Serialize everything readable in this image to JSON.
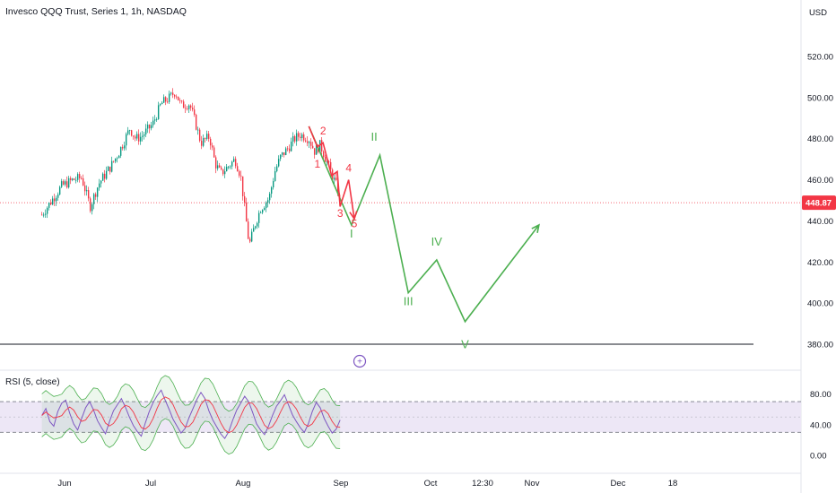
{
  "header": {
    "title": "Invesco QQQ Trust, Series 1, 1h, NASDAQ",
    "currency": "USD"
  },
  "price_tag": {
    "value": "448.87",
    "color": "#f23645"
  },
  "rsi": {
    "label": "RSI (5, close)"
  },
  "colors": {
    "candle_up": "#089981",
    "candle_down": "#f23645",
    "wave_red": "#f23645",
    "wave_green": "#4caf50",
    "rsi_line": "#7e57c2",
    "rsi_band": "#ede7f6",
    "bb": "#4caf50",
    "rsi_ma": "#f23645"
  },
  "chart_data": [
    {
      "type": "candlestick",
      "title": "Invesco QQQ Trust, Series 1, 1h, NASDAQ",
      "y_axis": {
        "ticks": [
          380,
          400,
          420,
          440,
          460,
          480,
          500,
          520
        ],
        "tick_labels": [
          "380.00",
          "400.00",
          "420.00",
          "440.00",
          "460.00",
          "480.00",
          "500.00",
          "520.00"
        ],
        "range": [
          372,
          535
        ]
      },
      "x_axis": {
        "labels": [
          "Jun",
          "Jul",
          "Aug",
          "Sep",
          "Oct",
          "12:30",
          "Nov",
          "Dec",
          "18"
        ]
      },
      "last_price": 448.87,
      "support_level": 380,
      "price_path": [
        {
          "d": "May 24",
          "p": 443
        },
        {
          "d": "May 28",
          "p": 451
        },
        {
          "d": "May 31",
          "p": 457
        },
        {
          "d": "Jun 4",
          "p": 460
        },
        {
          "d": "Jun 7",
          "p": 461
        },
        {
          "d": "Jun 10",
          "p": 447
        },
        {
          "d": "Jun 13",
          "p": 458
        },
        {
          "d": "Jun 17",
          "p": 466
        },
        {
          "d": "Jun 20",
          "p": 473
        },
        {
          "d": "Jun 24",
          "p": 485
        },
        {
          "d": "Jun 26",
          "p": 480
        },
        {
          "d": "Jun 28",
          "p": 481
        },
        {
          "d": "Jul 2",
          "p": 487
        },
        {
          "d": "Jul 5",
          "p": 497
        },
        {
          "d": "Jul 8",
          "p": 500
        },
        {
          "d": "Jul 10",
          "p": 503
        },
        {
          "d": "Jul 12",
          "p": 496
        },
        {
          "d": "Jul 15",
          "p": 497
        },
        {
          "d": "Jul 17",
          "p": 488
        },
        {
          "d": "Jul 19",
          "p": 478
        },
        {
          "d": "Jul 22",
          "p": 481
        },
        {
          "d": "Jul 24",
          "p": 468
        },
        {
          "d": "Jul 26",
          "p": 463
        },
        {
          "d": "Jul 29",
          "p": 467
        },
        {
          "d": "Jul 31",
          "p": 470
        },
        {
          "d": "Aug 2",
          "p": 462
        },
        {
          "d": "Aug 5",
          "p": 428
        },
        {
          "d": "Aug 7",
          "p": 438
        },
        {
          "d": "Aug 9",
          "p": 446
        },
        {
          "d": "Aug 12",
          "p": 451
        },
        {
          "d": "Aug 14",
          "p": 464
        },
        {
          "d": "Aug 16",
          "p": 471
        },
        {
          "d": "Aug 19",
          "p": 476
        },
        {
          "d": "Aug 21",
          "p": 480
        },
        {
          "d": "Aug 23",
          "p": 482
        },
        {
          "d": "Aug 26",
          "p": 480
        },
        {
          "d": "Aug 28",
          "p": 474
        },
        {
          "d": "Aug 30",
          "p": 477
        },
        {
          "d": "Sep 3",
          "p": 463
        },
        {
          "d": "Sep 5",
          "p": 456
        },
        {
          "d": "Sep 6",
          "p": 448
        }
      ],
      "wave_red": {
        "points": [
          {
            "d": "Aug 26",
            "p": 486
          },
          {
            "d": "Aug 29",
            "p": 476
          },
          {
            "d": "Aug 31",
            "p": 478
          },
          {
            "d": "Sep 3",
            "p": 462
          },
          {
            "d": "Sep 5",
            "p": 464
          },
          {
            "d": "Sep 6",
            "p": 447
          },
          {
            "d": "Sep 9",
            "p": 460
          },
          {
            "d": "Sep 11",
            "p": 441
          }
        ],
        "labels": [
          {
            "text": "2",
            "d": "Aug 31",
            "p": 482
          },
          {
            "text": "1",
            "d": "Aug 29",
            "p": 466
          },
          {
            "text": "3",
            "d": "Sep 6",
            "p": 442
          },
          {
            "text": "4",
            "d": "Sep 9",
            "p": 464
          },
          {
            "text": "5",
            "d": "Sep 11",
            "p": 437
          }
        ]
      },
      "wave_green": {
        "points": [
          {
            "d": "Aug 26",
            "p": 486
          },
          {
            "d": "Sep 10",
            "p": 438
          },
          {
            "d": "Sep 20",
            "p": 472
          },
          {
            "d": "Sep 30",
            "p": 405
          },
          {
            "d": "Oct 10",
            "p": 421
          },
          {
            "d": "Oct 20",
            "p": 391
          },
          {
            "d": "Nov 15",
            "p": 438
          }
        ],
        "labels": [
          {
            "text": "I",
            "d": "Sep 10",
            "p": 432
          },
          {
            "text": "II",
            "d": "Sep 18",
            "p": 479
          },
          {
            "text": "III",
            "d": "Sep 30",
            "p": 399
          },
          {
            "text": "IV",
            "d": "Oct 10",
            "p": 428
          },
          {
            "text": "V",
            "d": "Oct 20",
            "p": 378
          }
        ]
      }
    },
    {
      "type": "line",
      "title": "RSI (5, close)",
      "y_axis": {
        "ticks": [
          0,
          40,
          80
        ],
        "tick_labels": [
          "0.00",
          "40.00",
          "80.00"
        ],
        "range": [
          -20,
          110
        ]
      },
      "band": [
        30,
        70
      ],
      "series": [
        {
          "values": [
            52,
            61,
            44,
            38,
            57,
            68,
            72,
            55,
            41,
            33,
            48,
            62,
            70,
            59,
            45,
            36,
            28,
            44,
            58,
            66,
            74,
            63,
            50,
            39,
            31,
            25,
            42,
            57,
            69,
            78,
            85,
            72,
            60,
            47,
            38,
            29,
            35,
            49,
            61,
            73,
            82,
            74,
            58,
            46,
            37,
            28,
            22,
            31,
            46,
            59,
            68,
            77,
            70,
            56,
            41,
            33,
            27,
            38,
            52,
            64,
            71,
            79,
            66,
            53,
            44,
            36,
            30,
            41,
            57,
            69,
            62,
            48,
            38,
            29,
            34,
            46
          ]
        }
      ]
    }
  ]
}
